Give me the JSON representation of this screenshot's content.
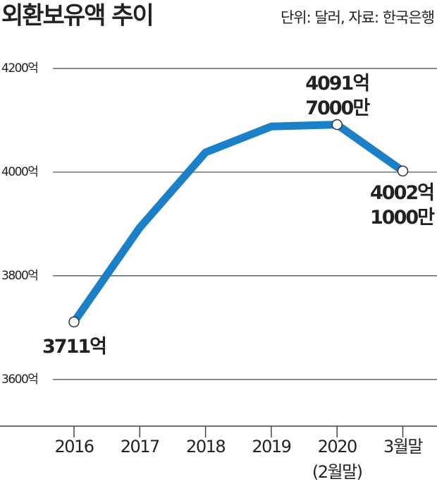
{
  "chart_data": {
    "type": "line",
    "title": "외환보유액 추이",
    "subtitle": "단위: 달러, 자료: 한국은행",
    "categories": [
      [
        "2016"
      ],
      [
        "2017"
      ],
      [
        "2018"
      ],
      [
        "2019"
      ],
      [
        "2020",
        "(2월말)"
      ],
      [
        "3월말"
      ]
    ],
    "values": [
      3711,
      3893,
      4038,
      4088,
      4091.7,
      4002.1
    ],
    "value_labels": [
      [
        "3711억"
      ],
      null,
      null,
      null,
      [
        "4091억",
        "7000만"
      ],
      [
        "4002억",
        "1000만"
      ]
    ],
    "color": "#1b80c8",
    "ylim": [
      3510,
      4220
    ],
    "yticks": [
      {
        "value": 3600,
        "label": "3600억"
      },
      {
        "value": 3800,
        "label": "3800억"
      },
      {
        "value": 4000,
        "label": "4000억"
      },
      {
        "value": 4200,
        "label": "4200억"
      }
    ],
    "grid": true
  }
}
